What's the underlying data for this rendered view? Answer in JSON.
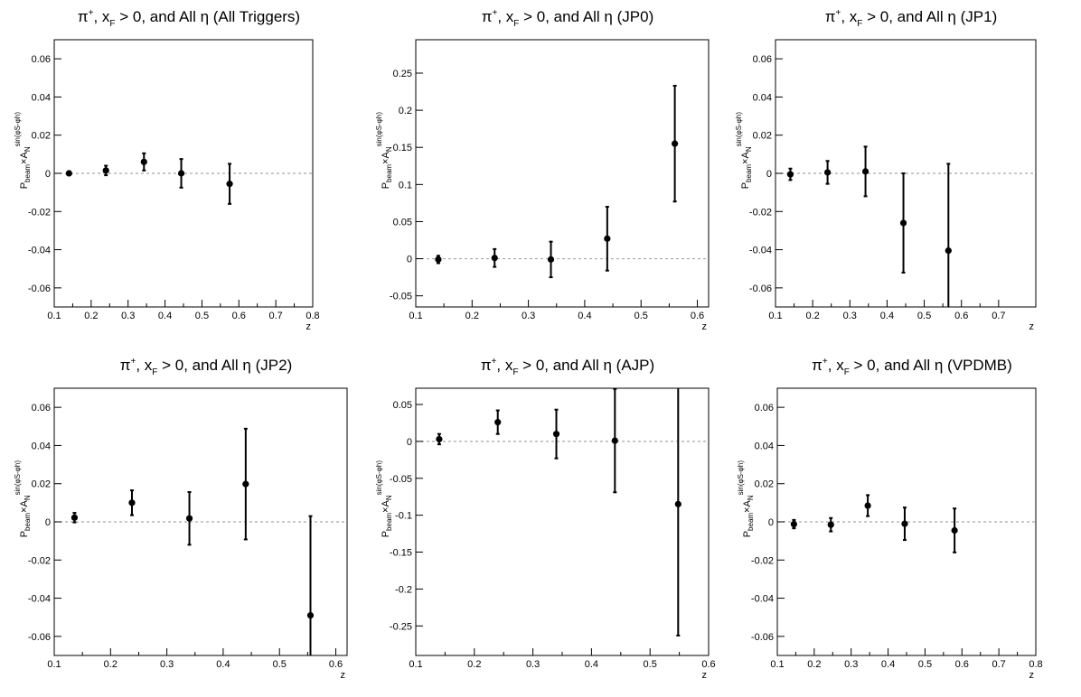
{
  "labels": {
    "zlabel": "z",
    "ylabel_main": "P",
    "ylabel_sub": "beam",
    "ylabel_times": "×A",
    "ylabel_n": "N",
    "ylabel_sup": "sin(φ",
    "ylabel_sup_s": "S",
    "ylabel_sup_mid": "-φ",
    "ylabel_sup_h": "h",
    "ylabel_sup_end": ")",
    "title_pi": "π",
    "title_plus": "+",
    "title_sep": ", x",
    "title_F": "F",
    "title_cond": " > 0, and All η"
  },
  "chart_data": [
    {
      "type": "scatter",
      "trigger": "(All Triggers)",
      "xlim": [
        0.1,
        0.8
      ],
      "ylim": [
        -0.07,
        0.07
      ],
      "xticks": [
        0.1,
        0.2,
        0.3,
        0.4,
        0.5,
        0.6,
        0.7,
        0.8
      ],
      "xtick_labels": [
        "0.1",
        "0.2",
        "0.3",
        "0.4",
        "0.5",
        "0.6",
        "0.7",
        "0.8"
      ],
      "yticks": [
        -0.06,
        -0.04,
        -0.02,
        0,
        0.02,
        0.04,
        0.06
      ],
      "ytick_labels": [
        "-0.06",
        "-0.04",
        "-0.02",
        "0",
        "0.02",
        "0.04",
        "0.06"
      ],
      "points": [
        {
          "x": 0.14,
          "y": 0.0,
          "err": 0.001
        },
        {
          "x": 0.24,
          "y": 0.0015,
          "err": 0.0025
        },
        {
          "x": 0.343,
          "y": 0.006,
          "err": 0.0045
        },
        {
          "x": 0.444,
          "y": 0.0,
          "err": 0.0075
        },
        {
          "x": 0.575,
          "y": -0.0055,
          "err": 0.0105
        }
      ]
    },
    {
      "type": "scatter",
      "trigger": "(JP0)",
      "xlim": [
        0.1,
        0.62
      ],
      "ylim": [
        -0.065,
        0.295
      ],
      "xticks": [
        0.1,
        0.2,
        0.3,
        0.4,
        0.5,
        0.6
      ],
      "xtick_labels": [
        "0.1",
        "0.2",
        "0.3",
        "0.4",
        "0.5",
        "0.6"
      ],
      "yticks": [
        -0.05,
        0,
        0.05,
        0.1,
        0.15,
        0.2,
        0.25
      ],
      "ytick_labels": [
        "-0.05",
        "0",
        "0.05",
        "0.1",
        "0.15",
        "0.2",
        "0.25"
      ],
      "points": [
        {
          "x": 0.14,
          "y": -0.001,
          "err": 0.005
        },
        {
          "x": 0.24,
          "y": 0.001,
          "err": 0.012
        },
        {
          "x": 0.34,
          "y": -0.001,
          "err": 0.024
        },
        {
          "x": 0.44,
          "y": 0.027,
          "err": 0.043
        },
        {
          "x": 0.56,
          "y": 0.155,
          "err": 0.078
        }
      ]
    },
    {
      "type": "scatter",
      "trigger": "(JP1)",
      "xlim": [
        0.1,
        0.8
      ],
      "ylim": [
        -0.07,
        0.07
      ],
      "xticks": [
        0.1,
        0.2,
        0.3,
        0.4,
        0.5,
        0.6,
        0.7
      ],
      "xtick_labels": [
        "0.1",
        "0.2",
        "0.3",
        "0.4",
        "0.5",
        "0.6",
        "0.7"
      ],
      "yticks": [
        -0.06,
        -0.04,
        -0.02,
        0,
        0.02,
        0.04,
        0.06
      ],
      "ytick_labels": [
        "-0.06",
        "-0.04",
        "-0.02",
        "0",
        "0.02",
        "0.04",
        "0.06"
      ],
      "points": [
        {
          "x": 0.14,
          "y": -0.0005,
          "err": 0.003
        },
        {
          "x": 0.24,
          "y": 0.0005,
          "err": 0.006
        },
        {
          "x": 0.342,
          "y": 0.001,
          "err": 0.013
        },
        {
          "x": 0.444,
          "y": -0.026,
          "err": 0.026
        },
        {
          "x": 0.565,
          "y": -0.0405,
          "err": 0.0455
        }
      ]
    },
    {
      "type": "scatter",
      "trigger": "(JP2)",
      "xlim": [
        0.1,
        0.62
      ],
      "ylim": [
        -0.07,
        0.07
      ],
      "xticks": [
        0.1,
        0.2,
        0.3,
        0.4,
        0.5,
        0.6
      ],
      "xtick_labels": [
        "0.1",
        "0.2",
        "0.3",
        "0.4",
        "0.5",
        "0.6"
      ],
      "yticks": [
        -0.06,
        -0.04,
        -0.02,
        0,
        0.02,
        0.04,
        0.06
      ],
      "ytick_labels": [
        "-0.06",
        "-0.04",
        "-0.02",
        "0",
        "0.02",
        "0.04",
        "0.06"
      ],
      "points": [
        {
          "x": 0.136,
          "y": 0.0022,
          "err": 0.0025
        },
        {
          "x": 0.238,
          "y": 0.01,
          "err": 0.0065
        },
        {
          "x": 0.34,
          "y": 0.0018,
          "err": 0.0138
        },
        {
          "x": 0.44,
          "y": 0.0198,
          "err": 0.029
        },
        {
          "x": 0.555,
          "y": -0.049,
          "err": 0.052
        }
      ]
    },
    {
      "type": "scatter",
      "trigger": "(AJP)",
      "xlim": [
        0.1,
        0.6
      ],
      "ylim": [
        -0.29,
        0.072
      ],
      "xticks": [
        0.1,
        0.2,
        0.3,
        0.4,
        0.5,
        0.6
      ],
      "xtick_labels": [
        "0.1",
        "0.2",
        "0.3",
        "0.4",
        "0.5",
        "0.6"
      ],
      "yticks": [
        -0.25,
        -0.2,
        -0.15,
        -0.1,
        -0.05,
        0,
        0.05
      ],
      "ytick_labels": [
        "-0.25",
        "-0.2",
        "-0.15",
        "-0.1",
        "-0.05",
        "0",
        "0.05"
      ],
      "points": [
        {
          "x": 0.14,
          "y": 0.003,
          "err": 0.007
        },
        {
          "x": 0.24,
          "y": 0.026,
          "err": 0.016
        },
        {
          "x": 0.34,
          "y": 0.01,
          "err": 0.033
        },
        {
          "x": 0.44,
          "y": 0.001,
          "err": 0.07
        },
        {
          "x": 0.548,
          "y": -0.085,
          "err": 0.178
        }
      ]
    },
    {
      "type": "scatter",
      "trigger": "(VPDMB)",
      "xlim": [
        0.1,
        0.8
      ],
      "ylim": [
        -0.07,
        0.07
      ],
      "xticks": [
        0.1,
        0.2,
        0.3,
        0.4,
        0.5,
        0.6,
        0.7,
        0.8
      ],
      "xtick_labels": [
        "0.1",
        "0.2",
        "0.3",
        "0.4",
        "0.5",
        "0.6",
        "0.7",
        "0.8"
      ],
      "yticks": [
        -0.06,
        -0.04,
        -0.02,
        0,
        0.02,
        0.04,
        0.06
      ],
      "ytick_labels": [
        "-0.06",
        "-0.04",
        "-0.02",
        "0",
        "0.02",
        "0.04",
        "0.06"
      ],
      "points": [
        {
          "x": 0.145,
          "y": -0.0012,
          "err": 0.0022
        },
        {
          "x": 0.245,
          "y": -0.0015,
          "err": 0.0035
        },
        {
          "x": 0.345,
          "y": 0.0085,
          "err": 0.0055
        },
        {
          "x": 0.445,
          "y": -0.001,
          "err": 0.0085
        },
        {
          "x": 0.58,
          "y": -0.0045,
          "err": 0.0115
        }
      ]
    }
  ]
}
